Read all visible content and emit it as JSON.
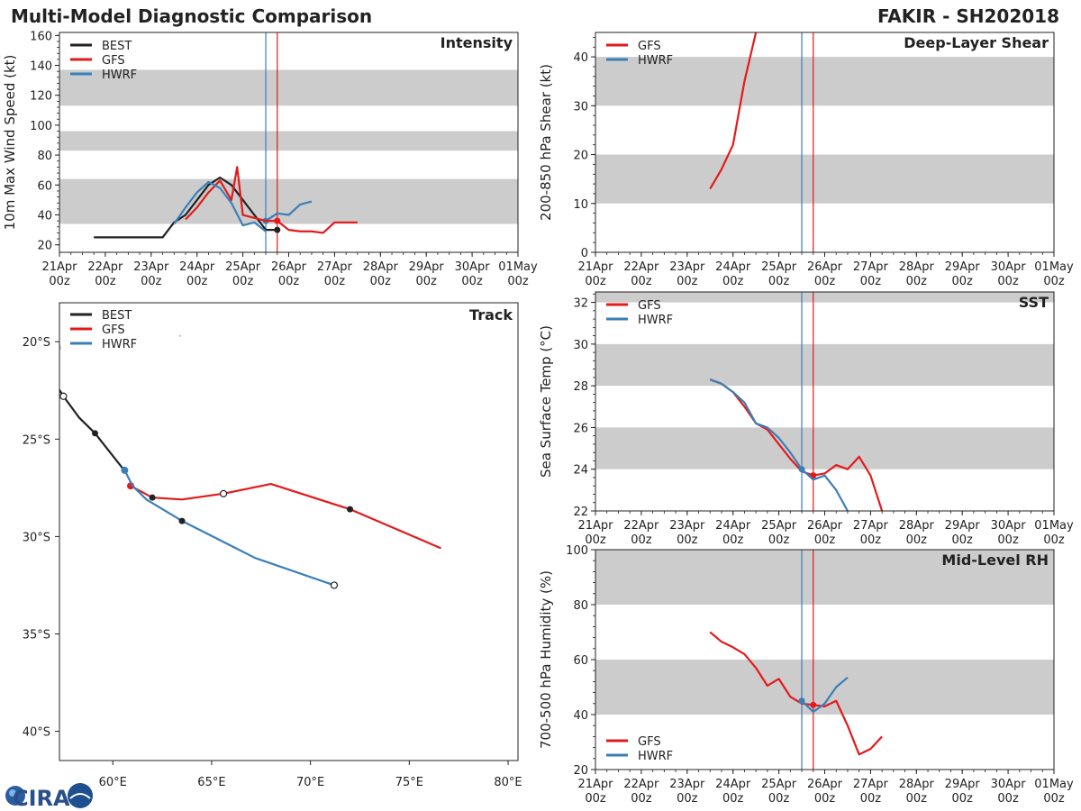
{
  "header": {
    "title_left": "Multi-Model Diagnostic Comparison",
    "title_right": "FAKIR - SH202018"
  },
  "logo": {
    "text": "CIRA"
  },
  "colors": {
    "BEST": "#222222",
    "GFS": "#e31a1c",
    "HWRF": "#3a7fb8",
    "band": "#cccccc",
    "initHWRF": "#3a7fb8",
    "initGFS": "#e31a1c"
  },
  "time_axis": {
    "ticks": [
      0,
      24,
      48,
      72,
      96,
      120,
      144,
      168,
      192,
      216,
      240
    ],
    "labels": [
      [
        "21Apr",
        "00z"
      ],
      [
        "22Apr",
        "00z"
      ],
      [
        "23Apr",
        "00z"
      ],
      [
        "24Apr",
        "00z"
      ],
      [
        "25Apr",
        "00z"
      ],
      [
        "26Apr",
        "00z"
      ],
      [
        "27Apr",
        "00z"
      ],
      [
        "28Apr",
        "00z"
      ],
      [
        "29Apr",
        "00z"
      ],
      [
        "30Apr",
        "00z"
      ],
      [
        "01May",
        "00z"
      ]
    ],
    "init_hwrf": 108,
    "init_gfs": 114
  },
  "chart_data": [
    {
      "id": "intensity",
      "type": "line",
      "title": "Intensity",
      "ylabel": "10m Max Wind Speed (kt)",
      "xlim": [
        0,
        240
      ],
      "ylim": [
        15,
        162
      ],
      "yticks": [
        20,
        40,
        60,
        80,
        100,
        120,
        140,
        160
      ],
      "bands": [
        [
          34,
          64
        ],
        [
          83,
          96
        ],
        [
          113,
          137
        ]
      ],
      "legend": [
        "BEST",
        "GFS",
        "HWRF"
      ],
      "series": [
        {
          "name": "BEST",
          "x": [
            18,
            24,
            30,
            36,
            42,
            48,
            54,
            60,
            66,
            72,
            78,
            84,
            90,
            96,
            102,
            108,
            114
          ],
          "y": [
            25,
            25,
            25,
            25,
            25,
            25,
            25,
            35,
            40,
            50,
            60,
            65,
            60,
            50,
            40,
            30,
            30
          ],
          "marker_x": 114
        },
        {
          "name": "GFS",
          "x": [
            114,
            120,
            126,
            132,
            138,
            144,
            150,
            156
          ],
          "y": [
            36,
            30,
            29,
            29,
            28,
            35,
            35,
            35
          ],
          "marker_x": 114
        },
        {
          "name": "HWRF",
          "x": [
            108,
            114,
            120,
            126,
            132
          ],
          "y": [
            36,
            41,
            40,
            47,
            49
          ],
          "marker_x": 108
        },
        {
          "name": "GFS-past",
          "x": [
            66,
            72,
            78,
            84,
            90,
            93,
            96,
            102,
            108,
            114
          ],
          "y": [
            37,
            45,
            55,
            63,
            50,
            72,
            40,
            38,
            36,
            36
          ]
        },
        {
          "name": "HWRF-past",
          "x": [
            60,
            66,
            72,
            78,
            84,
            90,
            96,
            102,
            108
          ],
          "y": [
            34,
            45,
            55,
            62,
            58,
            48,
            33,
            35,
            29
          ]
        }
      ]
    },
    {
      "id": "shear",
      "type": "line",
      "title": "Deep-Layer Shear",
      "ylabel": "200-850 hPa Shear (kt)",
      "xlim": [
        0,
        240
      ],
      "ylim": [
        0,
        45
      ],
      "yticks": [
        0,
        10,
        20,
        30,
        40
      ],
      "bands": [
        [
          10,
          20
        ],
        [
          30,
          40
        ]
      ],
      "legend": [
        "GFS",
        "HWRF"
      ],
      "series": [
        {
          "name": "GFS",
          "x": [
            60,
            66,
            72,
            78,
            84
          ],
          "y": [
            13,
            17,
            22,
            35,
            45
          ]
        }
      ]
    },
    {
      "id": "sst",
      "type": "line",
      "title": "SST",
      "ylabel": "Sea Surface Temp (°C)",
      "xlim": [
        0,
        240
      ],
      "ylim": [
        22,
        32.5
      ],
      "yticks": [
        22,
        24,
        26,
        28,
        30,
        32
      ],
      "bands": [
        [
          24,
          26
        ],
        [
          28,
          30
        ],
        [
          32,
          32.5
        ]
      ],
      "legend": [
        "GFS",
        "HWRF"
      ],
      "series": [
        {
          "name": "GFS",
          "x": [
            60,
            66,
            72,
            78,
            84,
            90,
            96,
            102,
            108,
            114,
            120,
            126,
            132,
            138,
            144,
            150
          ],
          "y": [
            28.3,
            28.1,
            27.7,
            27.0,
            26.2,
            25.9,
            25.2,
            24.5,
            23.9,
            23.7,
            23.8,
            24.2,
            24.0,
            24.6,
            23.7,
            22.0
          ],
          "marker_x": 114
        },
        {
          "name": "HWRF",
          "x": [
            60,
            66,
            72,
            78,
            84,
            90,
            96,
            102,
            108,
            114,
            120,
            126,
            132
          ],
          "y": [
            28.3,
            28.1,
            27.7,
            27.2,
            26.2,
            26.0,
            25.5,
            24.8,
            24.0,
            23.5,
            23.7,
            23.0,
            22.0
          ],
          "marker_x": 108
        }
      ]
    },
    {
      "id": "rh",
      "type": "line",
      "title": "Mid-Level RH",
      "ylabel": "700-500 hPa Humidity (%)",
      "xlim": [
        0,
        240
      ],
      "ylim": [
        20,
        100
      ],
      "yticks": [
        20,
        40,
        60,
        80,
        100
      ],
      "bands": [
        [
          40,
          60
        ],
        [
          80,
          100
        ]
      ],
      "legend": [
        "GFS",
        "HWRF"
      ],
      "legend_pos": "bottom-left",
      "series": [
        {
          "name": "GFS",
          "x": [
            60,
            66,
            72,
            78,
            84,
            90,
            96,
            102,
            108,
            114,
            120,
            126,
            132,
            138,
            144,
            150
          ],
          "y": [
            70,
            66.5,
            64.5,
            62,
            57,
            50.5,
            53,
            46.5,
            44,
            43.5,
            43,
            45,
            36,
            25.5,
            27.5,
            32
          ],
          "marker_x": 114
        },
        {
          "name": "HWRF",
          "x": [
            108,
            114,
            120,
            126,
            132
          ],
          "y": [
            45,
            41,
            44,
            50,
            53.5
          ],
          "marker_x": 108
        }
      ]
    },
    {
      "id": "track",
      "type": "line",
      "title": "Track",
      "xlabel_ticks": [
        "60°E",
        "65°E",
        "70°E",
        "75°E",
        "80°E"
      ],
      "ylabel_ticks": [
        "20°S",
        "25°S",
        "30°S",
        "35°S",
        "40°S"
      ],
      "xlim": [
        57.3,
        80.5
      ],
      "ylim": [
        -41.5,
        -18.0
      ],
      "legend": [
        "BEST",
        "GFS",
        "HWRF"
      ],
      "series": [
        {
          "name": "BEST",
          "lon": [
            57.0,
            57.5,
            58.3,
            59.1,
            59.8,
            60.5
          ],
          "lat": [
            -22.0,
            -22.8,
            -23.9,
            -24.7,
            -25.6,
            -26.5
          ],
          "filled_markers": [
            [
              59.1,
              -24.7
            ]
          ],
          "open_markers": [
            [
              57.5,
              -22.8
            ]
          ]
        },
        {
          "name": "GFS",
          "lon": [
            60.9,
            62.0,
            63.5,
            65.6,
            68.0,
            72.0,
            76.6
          ],
          "lat": [
            -27.4,
            -28.0,
            -28.1,
            -27.8,
            -27.3,
            -28.6,
            -30.6
          ],
          "start_marker": [
            60.9,
            -27.4
          ],
          "filled_markers": [
            [
              62.0,
              -28.0
            ],
            [
              72.0,
              -28.6
            ]
          ],
          "open_markers": [
            [
              65.6,
              -27.8
            ]
          ]
        },
        {
          "name": "HWRF",
          "lon": [
            60.6,
            61.0,
            61.7,
            63.5,
            67.2,
            71.2
          ],
          "lat": [
            -26.6,
            -27.4,
            -28.1,
            -29.2,
            -31.1,
            -32.5
          ],
          "start_marker": [
            60.6,
            -26.6
          ],
          "filled_markers": [
            [
              63.5,
              -29.2
            ]
          ],
          "open_markers": [
            [
              71.2,
              -32.5
            ]
          ]
        }
      ]
    }
  ]
}
